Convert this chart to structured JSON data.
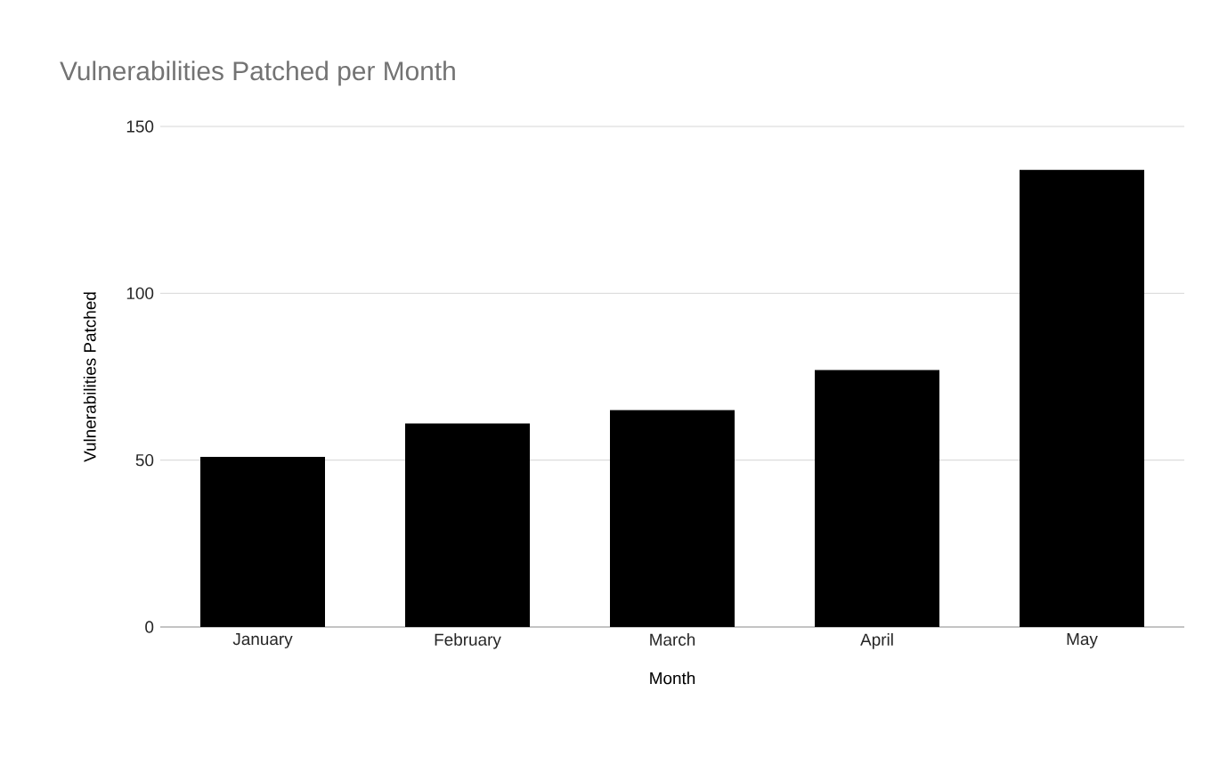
{
  "chart_data": {
    "type": "bar",
    "title": "Vulnerabilities Patched per Month",
    "xlabel": "Month",
    "ylabel": "Vulnerabilities Patched",
    "categories": [
      "January",
      "February",
      "March",
      "April",
      "May"
    ],
    "values": [
      51,
      61,
      65,
      77,
      137
    ],
    "color": "#000000",
    "ylim": [
      0,
      150
    ],
    "yticks": [
      0,
      50,
      100,
      150
    ],
    "grid": "y"
  }
}
